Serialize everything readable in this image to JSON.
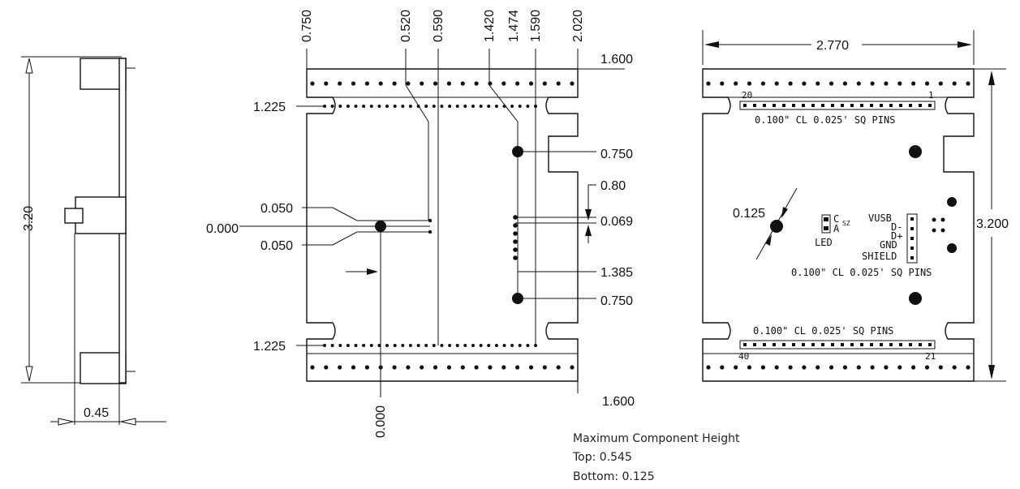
{
  "side_view": {
    "height_label": "3.20",
    "thickness_label": "0.45"
  },
  "center_view": {
    "top_labels": [
      "0.750",
      "0.520",
      "0.590",
      "1.420",
      "1.474",
      "1.590",
      "2.020"
    ],
    "right_top": "1.600",
    "right_bottom": "1.600",
    "left_top": "1.225",
    "left_bottom": "1.225",
    "left_050_top": "0.050",
    "left_000": "0.000",
    "left_050_bottom": "0.050",
    "right_750_top": "0.750",
    "right_080": "0.80",
    "right_069": "0.069",
    "right_1385": "1.385",
    "right_750_bottom": "0.750",
    "bottom_000": "0.000"
  },
  "right_view": {
    "width_label": "2.770",
    "height_label": "3.200",
    "hole_label": "0.125",
    "pin_top_start": "20",
    "pin_top_end": "1",
    "pin_top_text": "0.100\" CL 0.025' SQ PINS",
    "pin_mid_text": "0.100\" CL 0.025' SQ PINS",
    "pin_bottom_text": "0.100\" CL 0.025' SQ PINS",
    "pin_bottom_start": "40",
    "pin_bottom_end": "21",
    "led_c": "C",
    "led_a": "A",
    "led_sz": "SZ",
    "led_label": "LED",
    "usb_pins": [
      "VUSB",
      "D-",
      "D+",
      "GND",
      "SHIELD"
    ]
  },
  "notes": {
    "title": "Maximum Component Height",
    "top": "Top: 0.545",
    "bottom": "Bottom: 0.125"
  }
}
